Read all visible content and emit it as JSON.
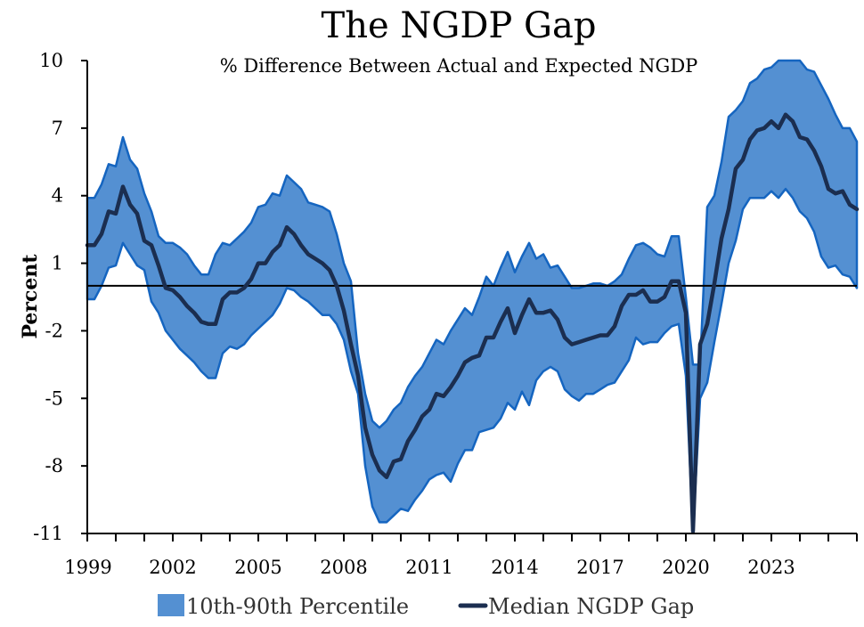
{
  "chart_data": {
    "type": "area",
    "title": "The NGDP Gap",
    "subtitle": "% Difference Between Actual and Expected NGDP",
    "xlabel": "",
    "ylabel": "Percent",
    "xlim": [
      1999.0,
      2026.0
    ],
    "ylim": [
      -11,
      10
    ],
    "y_ticks": [
      10,
      7,
      4,
      1,
      -2,
      -5,
      -8,
      -11
    ],
    "x_ticks": [
      1999,
      2002,
      2005,
      2008,
      2011,
      2014,
      2017,
      2020,
      2023
    ],
    "reference_line_y": 0,
    "grid": false,
    "legend_position": "bottom",
    "colors": {
      "band": "#5490d2",
      "band_edge": "#1565c0",
      "median": "#1b2e50",
      "zero_line": "#000000"
    },
    "series": [
      {
        "name": "10th-90th Percentile",
        "kind": "band",
        "x": [
          1999.0,
          1999.25,
          1999.5,
          1999.75,
          2000.0,
          2000.25,
          2000.5,
          2000.75,
          2001.0,
          2001.25,
          2001.5,
          2001.75,
          2002.0,
          2002.25,
          2002.5,
          2002.75,
          2003.0,
          2003.25,
          2003.5,
          2003.75,
          2004.0,
          2004.25,
          2004.5,
          2004.75,
          2005.0,
          2005.25,
          2005.5,
          2005.75,
          2006.0,
          2006.25,
          2006.5,
          2006.75,
          2007.0,
          2007.25,
          2007.5,
          2007.75,
          2008.0,
          2008.25,
          2008.5,
          2008.75,
          2009.0,
          2009.25,
          2009.5,
          2009.75,
          2010.0,
          2010.25,
          2010.5,
          2010.75,
          2011.0,
          2011.25,
          2011.5,
          2011.75,
          2012.0,
          2012.25,
          2012.5,
          2012.75,
          2013.0,
          2013.25,
          2013.5,
          2013.75,
          2014.0,
          2014.25,
          2014.5,
          2014.75,
          2015.0,
          2015.25,
          2015.5,
          2015.75,
          2016.0,
          2016.25,
          2016.5,
          2016.75,
          2017.0,
          2017.25,
          2017.5,
          2017.75,
          2018.0,
          2018.25,
          2018.5,
          2018.75,
          2019.0,
          2019.25,
          2019.5,
          2019.75,
          2020.0,
          2020.25,
          2020.5,
          2020.75,
          2021.0,
          2021.25,
          2021.5,
          2021.75,
          2022.0,
          2022.25,
          2022.5,
          2022.75,
          2023.0,
          2023.25,
          2023.5,
          2023.75,
          2024.0,
          2024.25,
          2024.5,
          2024.75,
          2025.0,
          2025.25,
          2025.5,
          2025.75,
          2026.0
        ],
        "upper": [
          3.9,
          3.9,
          4.5,
          5.4,
          5.3,
          6.6,
          5.6,
          5.2,
          4.1,
          3.3,
          2.2,
          1.9,
          1.9,
          1.7,
          1.4,
          0.9,
          0.5,
          0.5,
          1.4,
          1.9,
          1.8,
          2.1,
          2.4,
          2.8,
          3.5,
          3.6,
          4.1,
          4.0,
          4.9,
          4.6,
          4.3,
          3.7,
          3.6,
          3.5,
          3.3,
          2.3,
          1.0,
          0.2,
          -3.0,
          -4.8,
          -6.0,
          -6.3,
          -6.0,
          -5.5,
          -5.2,
          -4.5,
          -4.0,
          -3.6,
          -3.0,
          -2.4,
          -2.6,
          -2.0,
          -1.5,
          -1.0,
          -1.3,
          -0.5,
          0.4,
          0.0,
          0.8,
          1.5,
          0.6,
          1.3,
          1.9,
          1.2,
          1.4,
          0.8,
          0.9,
          0.4,
          -0.1,
          -0.1,
          0.0,
          0.1,
          0.1,
          0.0,
          0.2,
          0.5,
          1.2,
          1.8,
          1.9,
          1.7,
          1.4,
          1.3,
          2.2,
          2.2,
          -0.5,
          -3.5,
          -3.5,
          3.5,
          4.0,
          5.5,
          7.5,
          7.8,
          8.2,
          9.0,
          9.2,
          9.6,
          9.7,
          10.0,
          10.0,
          10.3,
          10.0,
          9.6,
          9.5,
          8.9,
          8.3,
          7.6,
          7.0,
          7.0,
          6.4
        ],
        "lower": [
          -0.6,
          -0.6,
          0.0,
          0.8,
          0.9,
          1.9,
          1.4,
          0.9,
          0.7,
          -0.7,
          -1.2,
          -2.0,
          -2.4,
          -2.8,
          -3.1,
          -3.4,
          -3.8,
          -4.1,
          -4.1,
          -3.0,
          -2.7,
          -2.8,
          -2.6,
          -2.2,
          -1.9,
          -1.6,
          -1.3,
          -0.8,
          -0.1,
          -0.2,
          -0.5,
          -0.7,
          -1.0,
          -1.3,
          -1.3,
          -1.7,
          -2.4,
          -3.8,
          -4.8,
          -8.0,
          -9.8,
          -10.5,
          -10.5,
          -10.2,
          -9.9,
          -10.0,
          -9.5,
          -9.1,
          -8.6,
          -8.4,
          -8.3,
          -8.7,
          -7.9,
          -7.3,
          -7.3,
          -6.5,
          -6.4,
          -6.3,
          -5.9,
          -5.2,
          -5.5,
          -4.7,
          -5.3,
          -4.2,
          -3.8,
          -3.6,
          -3.8,
          -4.6,
          -4.9,
          -5.1,
          -4.8,
          -4.8,
          -4.6,
          -4.4,
          -4.3,
          -3.8,
          -3.3,
          -2.3,
          -2.6,
          -2.5,
          -2.5,
          -2.1,
          -1.8,
          -1.7,
          -4.0,
          -10.9,
          -5.0,
          -4.3,
          -2.5,
          -0.8,
          1.0,
          2.0,
          3.4,
          3.9,
          3.9,
          3.9,
          4.2,
          3.9,
          4.3,
          3.9,
          3.3,
          3.0,
          2.4,
          1.3,
          0.8,
          0.9,
          0.5,
          0.4,
          -0.1
        ]
      },
      {
        "name": "Median NGDP Gap",
        "kind": "line",
        "x": [
          1999.0,
          1999.25,
          1999.5,
          1999.75,
          2000.0,
          2000.25,
          2000.5,
          2000.75,
          2001.0,
          2001.25,
          2001.5,
          2001.75,
          2002.0,
          2002.25,
          2002.5,
          2002.75,
          2003.0,
          2003.25,
          2003.5,
          2003.75,
          2004.0,
          2004.25,
          2004.5,
          2004.75,
          2005.0,
          2005.25,
          2005.5,
          2005.75,
          2006.0,
          2006.25,
          2006.5,
          2006.75,
          2007.0,
          2007.25,
          2007.5,
          2007.75,
          2008.0,
          2008.25,
          2008.5,
          2008.75,
          2009.0,
          2009.25,
          2009.5,
          2009.75,
          2010.0,
          2010.25,
          2010.5,
          2010.75,
          2011.0,
          2011.25,
          2011.5,
          2011.75,
          2012.0,
          2012.25,
          2012.5,
          2012.75,
          2013.0,
          2013.25,
          2013.5,
          2013.75,
          2014.0,
          2014.25,
          2014.5,
          2014.75,
          2015.0,
          2015.25,
          2015.5,
          2015.75,
          2016.0,
          2016.25,
          2016.5,
          2016.75,
          2017.0,
          2017.25,
          2017.5,
          2017.75,
          2018.0,
          2018.25,
          2018.5,
          2018.75,
          2019.0,
          2019.25,
          2019.5,
          2019.75,
          2020.0,
          2020.25,
          2020.5,
          2020.75,
          2021.0,
          2021.25,
          2021.5,
          2021.75,
          2022.0,
          2022.25,
          2022.5,
          2022.75,
          2023.0,
          2023.25,
          2023.5,
          2023.75,
          2024.0,
          2024.25,
          2024.5,
          2024.75,
          2025.0,
          2025.25,
          2025.5,
          2025.75,
          2026.0
        ],
        "values": [
          1.8,
          1.8,
          2.3,
          3.3,
          3.2,
          4.4,
          3.6,
          3.2,
          2.0,
          1.8,
          0.9,
          -0.1,
          -0.2,
          -0.5,
          -0.9,
          -1.2,
          -1.6,
          -1.7,
          -1.7,
          -0.6,
          -0.3,
          -0.3,
          -0.1,
          0.3,
          1.0,
          1.0,
          1.5,
          1.8,
          2.6,
          2.3,
          1.8,
          1.4,
          1.2,
          1.0,
          0.7,
          0.0,
          -1.1,
          -2.6,
          -4.0,
          -6.3,
          -7.5,
          -8.2,
          -8.5,
          -7.8,
          -7.7,
          -6.9,
          -6.4,
          -5.8,
          -5.5,
          -4.8,
          -4.9,
          -4.5,
          -4.0,
          -3.4,
          -3.2,
          -3.1,
          -2.3,
          -2.3,
          -1.6,
          -1.0,
          -2.1,
          -1.3,
          -0.6,
          -1.2,
          -1.2,
          -1.1,
          -1.5,
          -2.3,
          -2.6,
          -2.5,
          -2.4,
          -2.3,
          -2.2,
          -2.2,
          -1.8,
          -0.9,
          -0.4,
          -0.4,
          -0.2,
          -0.7,
          -0.7,
          -0.5,
          0.2,
          0.2,
          -1.2,
          -10.9,
          -2.6,
          -1.7,
          0.1,
          2.1,
          3.4,
          5.2,
          5.6,
          6.5,
          6.9,
          7.0,
          7.3,
          7.0,
          7.6,
          7.3,
          6.6,
          6.5,
          6.0,
          5.3,
          4.3,
          4.1,
          4.2,
          3.6,
          3.4
        ]
      }
    ]
  },
  "legend": {
    "band_label": "10th-90th Percentile",
    "median_label": "Median NGDP Gap"
  }
}
